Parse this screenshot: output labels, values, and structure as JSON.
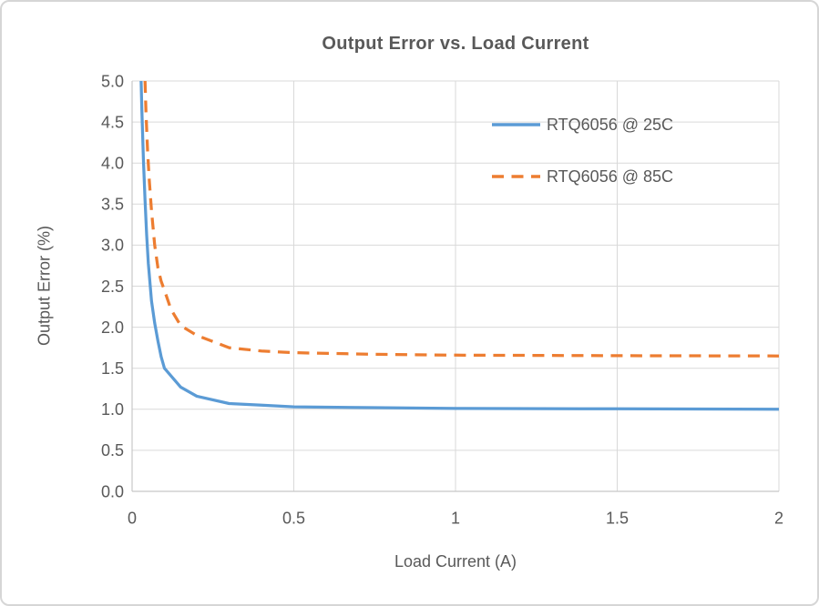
{
  "window": {
    "background": "#ffffff",
    "border_color": "#d6d6d6"
  },
  "chart_data": {
    "type": "line",
    "title": "Output Error vs. Load Current",
    "xlabel": "Load Current (A)",
    "ylabel": "Output Error (%)",
    "xlim": [
      0,
      2
    ],
    "ylim": [
      0,
      5
    ],
    "grid": true,
    "grid_color": "#d9d9d9",
    "axis_color": "#c8c8c8",
    "text_color": "#595959",
    "legend_position": "inside-top-right",
    "xticks": [
      {
        "v": 0,
        "label": "0"
      },
      {
        "v": 0.5,
        "label": "0.5"
      },
      {
        "v": 1,
        "label": "1"
      },
      {
        "v": 1.5,
        "label": "1.5"
      },
      {
        "v": 2,
        "label": "2"
      }
    ],
    "yticks": [
      {
        "v": 0,
        "label": "0.0"
      },
      {
        "v": 0.5,
        "label": "0.5"
      },
      {
        "v": 1,
        "label": "1.0"
      },
      {
        "v": 1.5,
        "label": "1.5"
      },
      {
        "v": 2,
        "label": "2.0"
      },
      {
        "v": 2.5,
        "label": "2.5"
      },
      {
        "v": 3,
        "label": "3.0"
      },
      {
        "v": 3.5,
        "label": "3.5"
      },
      {
        "v": 4,
        "label": "4.0"
      },
      {
        "v": 4.5,
        "label": "4.5"
      },
      {
        "v": 5,
        "label": "5.0"
      }
    ],
    "series": [
      {
        "name": "RTQ6056 @ 25C",
        "color": "#5b9bd5",
        "line_style": "solid",
        "points": [
          [
            0.028,
            5.0
          ],
          [
            0.03,
            4.65
          ],
          [
            0.035,
            4.05
          ],
          [
            0.04,
            3.55
          ],
          [
            0.045,
            3.12
          ],
          [
            0.05,
            2.78
          ],
          [
            0.06,
            2.32
          ],
          [
            0.07,
            2.05
          ],
          [
            0.08,
            1.83
          ],
          [
            0.09,
            1.64
          ],
          [
            0.1,
            1.5
          ],
          [
            0.15,
            1.27
          ],
          [
            0.2,
            1.16
          ],
          [
            0.3,
            1.07
          ],
          [
            0.4,
            1.05
          ],
          [
            0.5,
            1.03
          ],
          [
            0.75,
            1.02
          ],
          [
            1.0,
            1.01
          ],
          [
            1.5,
            1.005
          ],
          [
            2.0,
            1.0
          ]
        ]
      },
      {
        "name": "RTQ6056 @ 85C",
        "color": "#ed7d31",
        "line_style": "dashed",
        "points": [
          [
            0.04,
            5.0
          ],
          [
            0.043,
            4.6
          ],
          [
            0.048,
            4.15
          ],
          [
            0.053,
            3.8
          ],
          [
            0.06,
            3.42
          ],
          [
            0.07,
            3.0
          ],
          [
            0.08,
            2.72
          ],
          [
            0.09,
            2.56
          ],
          [
            0.1,
            2.45
          ],
          [
            0.12,
            2.22
          ],
          [
            0.15,
            2.02
          ],
          [
            0.2,
            1.9
          ],
          [
            0.3,
            1.75
          ],
          [
            0.4,
            1.71
          ],
          [
            0.5,
            1.69
          ],
          [
            0.75,
            1.67
          ],
          [
            1.0,
            1.66
          ],
          [
            1.5,
            1.653
          ],
          [
            2.0,
            1.65
          ]
        ]
      }
    ]
  }
}
